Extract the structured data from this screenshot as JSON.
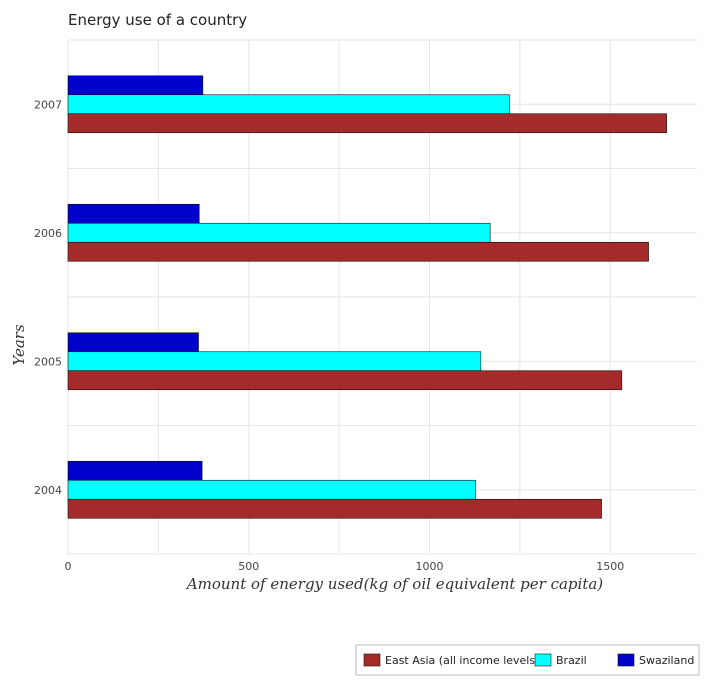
{
  "chart_data": {
    "type": "bar",
    "orientation": "horizontal",
    "title": "Energy use of a country",
    "xlabel": "Amount of energy used(kg of oil equivalent per capita)",
    "ylabel": "Years",
    "categories": [
      "2004",
      "2005",
      "2006",
      "2007"
    ],
    "xlim": [
      0,
      1740
    ],
    "xticks": [
      "0",
      "500",
      "1000",
      "1500"
    ],
    "xtick_values": [
      0,
      500,
      1000,
      1500
    ],
    "grid": true,
    "legend_position": "bottom-right",
    "series": [
      {
        "name": "East Asia (all income levels)",
        "color": "#a52a2a",
        "values": [
          1476,
          1532,
          1606,
          1656
        ]
      },
      {
        "name": "Brazil",
        "color": "#00ffff",
        "values": [
          1128,
          1142,
          1168,
          1221
        ]
      },
      {
        "name": "Swaziland",
        "color": "#0000cd",
        "values": [
          371,
          361,
          363,
          373
        ]
      }
    ]
  }
}
